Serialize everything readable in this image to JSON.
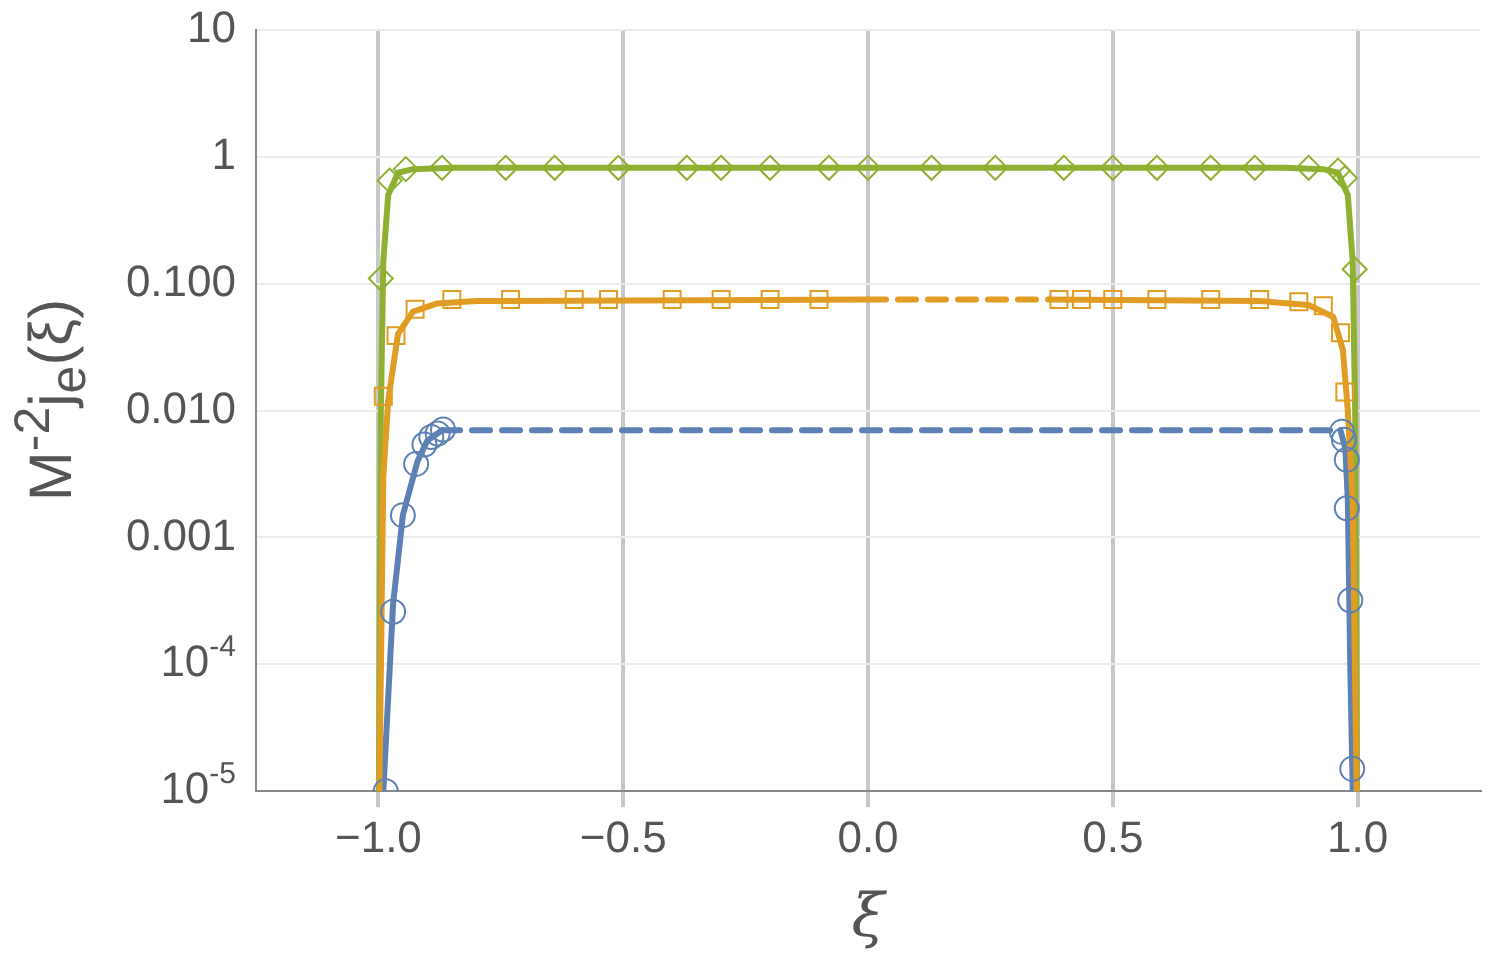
{
  "chart_data": {
    "type": "line",
    "xlabel": "ξ",
    "ylabel": "M$^{-2}$j$_{e}$(ξ)",
    "log": "y",
    "xlim": [
      -1.25,
      1.25
    ],
    "ylim": [
      1e-05,
      10
    ],
    "xticks": [
      {
        "value": -1,
        "label": "−1.0"
      },
      {
        "value": -0.5,
        "label": "−0.5"
      },
      {
        "value": 0,
        "label": "0.0"
      },
      {
        "value": 0.5,
        "label": "0.5"
      },
      {
        "value": 1,
        "label": "1.0"
      }
    ],
    "yticks": [
      {
        "value": 1e-05,
        "label": "10$^{-5}$"
      },
      {
        "value": 0.0001,
        "label": "10$^{-4}$"
      },
      {
        "value": 0.001,
        "label": "0.001"
      },
      {
        "value": 0.01,
        "label": "0.010"
      },
      {
        "value": 0.1,
        "label": "0.100"
      },
      {
        "value": 1,
        "label": "1"
      },
      {
        "value": 10,
        "label": "10"
      }
    ],
    "grid": true,
    "series": [
      {
        "color": "#e19c24",
        "line_style": "solid",
        "marker": "none",
        "x": [
          -0.998,
          -0.99,
          -0.98,
          -0.96,
          -0.93,
          -0.88,
          -0.8,
          0
        ],
        "values": [
          1e-05,
          0.003,
          0.012,
          0.04,
          0.06,
          0.07,
          0.073,
          0.075
        ]
      },
      {
        "color": "#e19c24",
        "line_style": "dashed",
        "marker": "none",
        "x": [
          0,
          0.37
        ],
        "values": [
          0.075,
          0.075
        ]
      },
      {
        "color": "#e19c24",
        "line_style": "solid",
        "marker": "none",
        "x": [
          0.37,
          0.8,
          0.9,
          0.95,
          0.97,
          0.98,
          0.99,
          0.998
        ],
        "values": [
          0.075,
          0.073,
          0.068,
          0.055,
          0.03,
          0.01,
          0.002,
          1e-05
        ]
      },
      {
        "color": "#5e81b5",
        "line_style": "solid",
        "marker": "none",
        "x": [
          -0.99,
          -0.97,
          -0.95,
          -0.92,
          -0.9,
          -0.87
        ],
        "values": [
          1e-05,
          0.0003,
          0.0015,
          0.004,
          0.0058,
          0.007
        ]
      },
      {
        "color": "#5e81b5",
        "line_style": "dashed",
        "marker": "none",
        "x": [
          -0.87,
          0.965
        ],
        "values": [
          0.007,
          0.007
        ]
      },
      {
        "color": "#5e81b5",
        "line_style": "solid",
        "marker": "none",
        "x": [
          0.965,
          0.975,
          0.98,
          0.985,
          0.99
        ],
        "values": [
          0.007,
          0.005,
          0.002,
          0.0001,
          1e-05
        ]
      },
      {
        "color": "#8fb032",
        "line_style": "solid",
        "marker": "none",
        "x": [
          -0.999,
          -0.995,
          -0.99,
          -0.98,
          -0.96,
          -0.93,
          -0.85,
          0.85,
          0.93,
          0.96,
          0.98,
          0.99,
          0.995,
          0.999
        ],
        "values": [
          1e-05,
          0.01,
          0.15,
          0.5,
          0.75,
          0.8,
          0.82,
          0.82,
          0.8,
          0.75,
          0.5,
          0.15,
          0.01,
          1e-05
        ]
      },
      {
        "type": "scatter",
        "color": "#8fb032",
        "marker": "diamond",
        "x": [
          -0.995,
          -0.977,
          -0.944,
          -0.87,
          -0.74,
          -0.64,
          -0.51,
          -0.37,
          -0.3,
          -0.2,
          -0.08,
          0,
          0.13,
          0.26,
          0.4,
          0.5,
          0.59,
          0.7,
          0.79,
          0.9,
          0.96,
          0.974,
          0.994
        ],
        "values": [
          0.11,
          0.65,
          0.8,
          0.82,
          0.82,
          0.82,
          0.82,
          0.82,
          0.82,
          0.82,
          0.82,
          0.82,
          0.82,
          0.82,
          0.82,
          0.82,
          0.82,
          0.82,
          0.82,
          0.82,
          0.78,
          0.68,
          0.13
        ]
      },
      {
        "type": "scatter",
        "color": "#e19c24",
        "marker": "square",
        "x": [
          -0.99,
          -0.964,
          -0.925,
          -0.85,
          -0.73,
          -0.6,
          -0.53,
          -0.4,
          -0.3,
          -0.2,
          -0.1,
          0.39,
          0.436,
          0.5,
          0.59,
          0.7,
          0.8,
          0.88,
          0.93,
          0.965,
          0.974
        ],
        "values": [
          0.013,
          0.039,
          0.063,
          0.075,
          0.075,
          0.075,
          0.075,
          0.075,
          0.075,
          0.075,
          0.075,
          0.075,
          0.075,
          0.075,
          0.075,
          0.075,
          0.075,
          0.072,
          0.067,
          0.041,
          0.014
        ]
      },
      {
        "type": "scatter",
        "color": "#5e81b5",
        "marker": "circle",
        "x": [
          -0.985,
          -0.97,
          -0.95,
          -0.923,
          -0.906,
          -0.892,
          -0.879,
          -0.868,
          0.968,
          0.972,
          0.978,
          0.978,
          0.985,
          0.989
        ],
        "values": [
          1e-05,
          0.00026,
          0.0015,
          0.0038,
          0.0054,
          0.0062,
          0.0066,
          0.0071,
          0.0068,
          0.0059,
          0.0041,
          0.0017,
          0.00032,
          1.5e-05
        ]
      }
    ]
  }
}
